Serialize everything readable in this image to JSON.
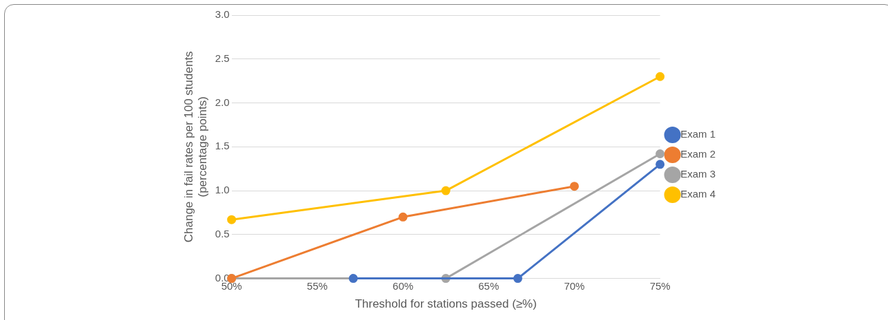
{
  "chart_data": {
    "type": "line",
    "xlabel": "Threshold for stations passed (≥%)",
    "ylabel": "Change in fail rates per 100 students\n(percentage points)",
    "xlim": [
      50,
      75
    ],
    "xticks": [
      {
        "value": 50,
        "label": "50%"
      },
      {
        "value": 55,
        "label": "55%"
      },
      {
        "value": 60,
        "label": "60%"
      },
      {
        "value": 65,
        "label": "65%"
      },
      {
        "value": 70,
        "label": "70%"
      },
      {
        "value": 75,
        "label": "75%"
      }
    ],
    "ylim": [
      0,
      3
    ],
    "yticks": [
      {
        "value": 0,
        "label": "0.0"
      },
      {
        "value": 0.5,
        "label": "0.5"
      },
      {
        "value": 1,
        "label": "1.0"
      },
      {
        "value": 1.5,
        "label": "1.5"
      },
      {
        "value": 2,
        "label": "2.0"
      },
      {
        "value": 2.5,
        "label": "2.5"
      },
      {
        "value": 3,
        "label": "3.0"
      }
    ],
    "grid": "y",
    "legend": "right",
    "marker": "circle",
    "line_style": "solid",
    "series": [
      {
        "name": "Exam 1",
        "color": "#4472c4",
        "x": [
          57.1,
          66.7,
          75
        ],
        "values": [
          0,
          0,
          1.3
        ]
      },
      {
        "name": "Exam 2",
        "color": "#ed7d31",
        "x": [
          50,
          60,
          70
        ],
        "values": [
          0,
          0.7,
          1.05
        ]
      },
      {
        "name": "Exam 3",
        "color": "#a5a5a5",
        "x": [
          50,
          62.5,
          75
        ],
        "values": [
          0,
          0,
          1.42
        ]
      },
      {
        "name": "Exam 4",
        "color": "#ffc000",
        "x": [
          50,
          62.5,
          75
        ],
        "values": [
          0.67,
          1,
          2.3
        ]
      }
    ]
  }
}
